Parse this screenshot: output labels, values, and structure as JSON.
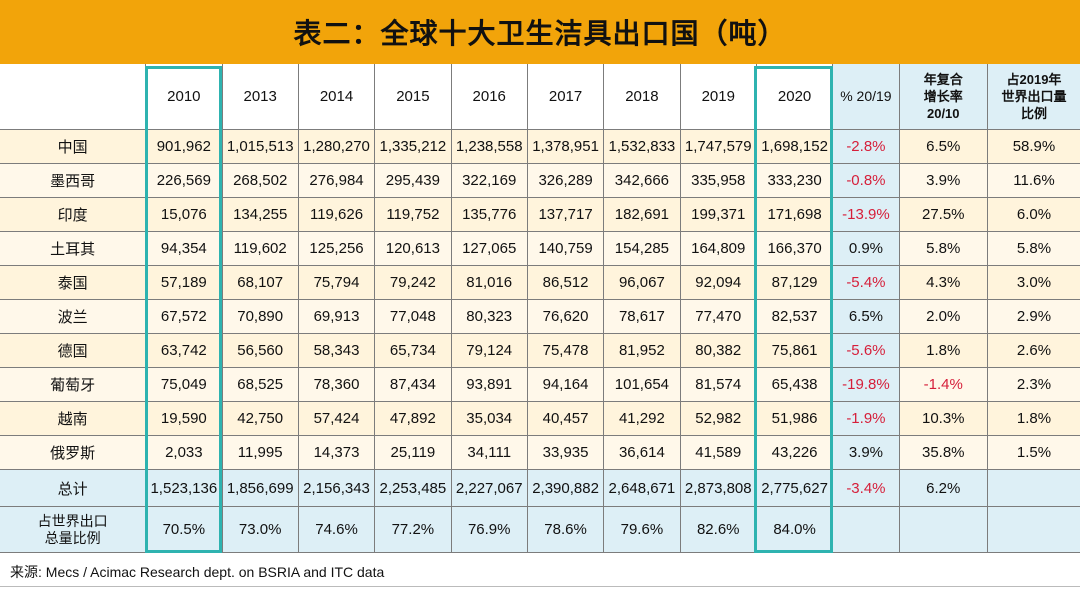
{
  "title": "表二：全球十大卫生洁具出口国（吨）",
  "table": {
    "headers": {
      "country": "",
      "years": [
        "2010",
        "2013",
        "2014",
        "2015",
        "2016",
        "2017",
        "2018",
        "2019",
        "2020"
      ],
      "pct": "% 20/19",
      "cagr": [
        "年复合",
        "增长率",
        "20/10"
      ],
      "share": [
        "占2019年",
        "世界出口量",
        "比例"
      ]
    },
    "rows": [
      {
        "country": "中国",
        "values": [
          "901,962",
          "1,015,513",
          "1,280,270",
          "1,335,212",
          "1,238,558",
          "1,378,951",
          "1,532,833",
          "1,747,579",
          "1,698,152"
        ],
        "pct": "-2.8%",
        "cagr": "6.5%",
        "share": "58.9%"
      },
      {
        "country": "墨西哥",
        "values": [
          "226,569",
          "268,502",
          "276,984",
          "295,439",
          "322,169",
          "326,289",
          "342,666",
          "335,958",
          "333,230"
        ],
        "pct": "-0.8%",
        "cagr": "3.9%",
        "share": "11.6%"
      },
      {
        "country": "印度",
        "values": [
          "15,076",
          "134,255",
          "119,626",
          "119,752",
          "135,776",
          "137,717",
          "182,691",
          "199,371",
          "171,698"
        ],
        "pct": "-13.9%",
        "cagr": "27.5%",
        "share": "6.0%"
      },
      {
        "country": "土耳其",
        "values": [
          "94,354",
          "119,602",
          "125,256",
          "120,613",
          "127,065",
          "140,759",
          "154,285",
          "164,809",
          "166,370"
        ],
        "pct": "0.9%",
        "cagr": "5.8%",
        "share": "5.8%"
      },
      {
        "country": "泰国",
        "values": [
          "57,189",
          "68,107",
          "75,794",
          "79,242",
          "81,016",
          "86,512",
          "96,067",
          "92,094",
          "87,129"
        ],
        "pct": "-5.4%",
        "cagr": "4.3%",
        "share": "3.0%"
      },
      {
        "country": "波兰",
        "values": [
          "67,572",
          "70,890",
          "69,913",
          "77,048",
          "80,323",
          "76,620",
          "78,617",
          "77,470",
          "82,537"
        ],
        "pct": "6.5%",
        "cagr": "2.0%",
        "share": "2.9%"
      },
      {
        "country": "德国",
        "values": [
          "63,742",
          "56,560",
          "58,343",
          "65,734",
          "79,124",
          "75,478",
          "81,952",
          "80,382",
          "75,861"
        ],
        "pct": "-5.6%",
        "cagr": "1.8%",
        "share": "2.6%"
      },
      {
        "country": "葡萄牙",
        "values": [
          "75,049",
          "68,525",
          "78,360",
          "87,434",
          "93,891",
          "94,164",
          "101,654",
          "81,574",
          "65,438"
        ],
        "pct": "-19.8%",
        "cagr": "-1.4%",
        "share": "2.3%"
      },
      {
        "country": "越南",
        "values": [
          "19,590",
          "42,750",
          "57,424",
          "47,892",
          "35,034",
          "40,457",
          "41,292",
          "52,982",
          "51,986"
        ],
        "pct": "-1.9%",
        "cagr": "10.3%",
        "share": "1.8%"
      },
      {
        "country": "俄罗斯",
        "values": [
          "2,033",
          "11,995",
          "14,373",
          "25,119",
          "34,111",
          "33,935",
          "36,614",
          "41,589",
          "43,226"
        ],
        "pct": "3.9%",
        "cagr": "35.8%",
        "share": "1.5%"
      }
    ],
    "total": {
      "label": "总计",
      "values": [
        "1,523,136",
        "1,856,699",
        "2,156,343",
        "2,253,485",
        "2,227,067",
        "2,390,882",
        "2,648,671",
        "2,873,808",
        "2,775,627"
      ],
      "pct": "-3.4%",
      "cagr": "6.2%",
      "share": ""
    },
    "share_row": {
      "label": [
        "占世界出口",
        "总量比例"
      ],
      "values": [
        "70.5%",
        "73.0%",
        "74.6%",
        "77.2%",
        "76.9%",
        "78.6%",
        "79.6%",
        "82.6%",
        "84.0%"
      ],
      "pct": "",
      "cagr": "",
      "share": ""
    }
  },
  "source": "来源: Mecs / Acimac Research dept. on BSRIA and ITC data",
  "colors": {
    "title_bg": "#F2A40A",
    "row_bg": "#FFF4DC",
    "blue_bg": "#DDEFF6",
    "highlight": "#2EB3B0",
    "negative": "#D61F3A"
  }
}
